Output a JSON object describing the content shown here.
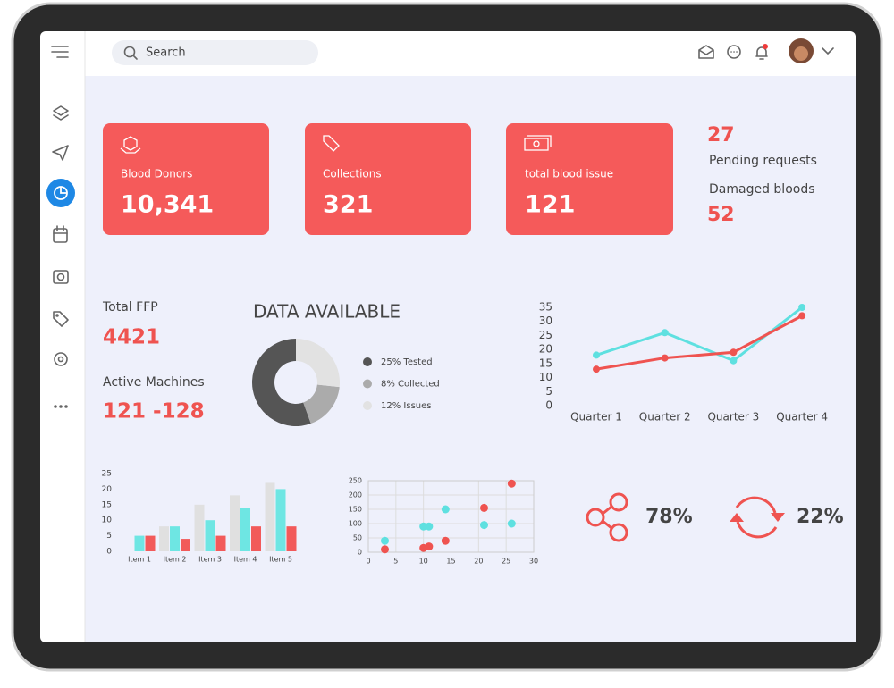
{
  "search": {
    "placeholder": "Search"
  },
  "cards": [
    {
      "label": "Blood Donors",
      "value": "10,341"
    },
    {
      "label": "Collections",
      "value": "321"
    },
    {
      "label": "total blood issue",
      "value": "121"
    }
  ],
  "side_stats": {
    "pending_value": "27",
    "pending_label": "Pending requests",
    "damaged_label": "Damaged bloods",
    "damaged_value": "52"
  },
  "machines": {
    "ffp_label": "Total FFP",
    "ffp_value": "4421",
    "active_label": "Active Machines",
    "active_value": "121 -128"
  },
  "percent_stats": {
    "share": "78%",
    "refresh": "22%"
  },
  "chart_data": [
    {
      "type": "donut",
      "title": "DATA AVAILABLE",
      "labels": [
        "25% Tested",
        "8% Collected",
        "12% Issues"
      ],
      "values": [
        25,
        8,
        12
      ],
      "colors": [
        "#555555",
        "#ababab",
        "#e2e2e2"
      ]
    },
    {
      "type": "line",
      "categories": [
        "Quarter 1",
        "Quarter 2",
        "Quarter 3",
        "Quarter 4"
      ],
      "series": [
        {
          "color": "#5ee0e0",
          "values": [
            18,
            26,
            16,
            35
          ]
        },
        {
          "color": "#ef5350",
          "values": [
            13,
            17,
            19,
            32
          ]
        }
      ],
      "ylim": [
        0,
        35
      ],
      "yticks": [
        0,
        5,
        10,
        15,
        20,
        25,
        30,
        35
      ],
      "grid": false
    },
    {
      "type": "bar",
      "categories": [
        "Item 1",
        "Item 2",
        "Item 3",
        "Item 4",
        "Item 5"
      ],
      "series": [
        {
          "color": "#e0e0e0",
          "values": [
            0,
            8,
            15,
            18,
            22
          ]
        },
        {
          "color": "#6ee6e3",
          "values": [
            5,
            8,
            10,
            14,
            20
          ]
        },
        {
          "color": "#f25a5a",
          "values": [
            5,
            4,
            5,
            8,
            8
          ]
        }
      ],
      "ylim": [
        0,
        25
      ],
      "yticks": [
        0,
        5,
        10,
        15,
        20,
        25
      ],
      "grid": false
    },
    {
      "type": "scatter",
      "series": [
        {
          "color": "#5ee0e0",
          "x": [
            3,
            10,
            11,
            14,
            21,
            26
          ],
          "values": [
            40,
            90,
            90,
            150,
            95,
            100
          ]
        },
        {
          "color": "#ef5350",
          "x": [
            3,
            10,
            11,
            14,
            21,
            26
          ],
          "values": [
            10,
            15,
            20,
            40,
            155,
            240
          ]
        }
      ],
      "xlim": [
        0,
        30
      ],
      "xticks": [
        0,
        5,
        10,
        15,
        20,
        25,
        30
      ],
      "ylim": [
        0,
        250
      ],
      "yticks": [
        0,
        50,
        100,
        150,
        200,
        250
      ],
      "grid": true
    }
  ]
}
